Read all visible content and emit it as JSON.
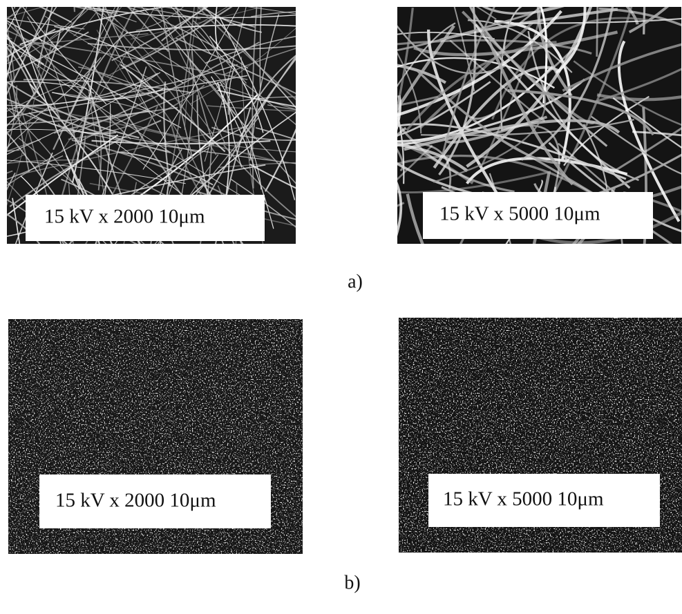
{
  "figure": {
    "panels": [
      {
        "label": "a)",
        "images": [
          {
            "caption": "15 kV x 2000  10μm"
          },
          {
            "caption": "15 kV x 5000  10μm"
          }
        ]
      },
      {
        "label": "b)",
        "images": [
          {
            "caption": "15 kV x 2000  10μm"
          },
          {
            "caption": "15 kV x 5000  10μm"
          }
        ]
      }
    ]
  }
}
